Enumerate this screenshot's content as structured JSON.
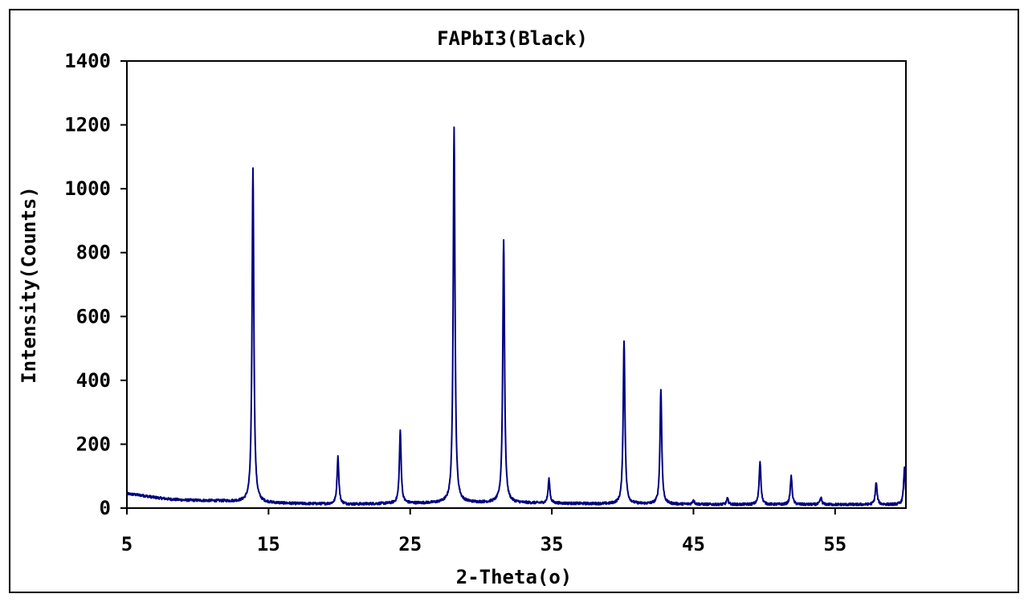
{
  "chart_data": {
    "type": "line",
    "title": "FAPbI3(Black)",
    "xlabel": "2-Theta(o)",
    "ylabel": "Intensity(Counts)",
    "xlim": [
      5,
      60
    ],
    "ylim": [
      0,
      1400
    ],
    "xticks": [
      5,
      15,
      25,
      35,
      45,
      55
    ],
    "yticks": [
      0,
      200,
      400,
      600,
      800,
      1000,
      1200,
      1400
    ],
    "grid": false,
    "line_color": "#000080",
    "baseline": [
      [
        5,
        45
      ],
      [
        6,
        40
      ],
      [
        7,
        33
      ],
      [
        8,
        28
      ],
      [
        9,
        25
      ],
      [
        10,
        24
      ],
      [
        11,
        23
      ],
      [
        12,
        22
      ],
      [
        13,
        20
      ],
      [
        14,
        18
      ],
      [
        15,
        16
      ],
      [
        17,
        14
      ],
      [
        19,
        13
      ],
      [
        21,
        12
      ],
      [
        23,
        14
      ],
      [
        25,
        15
      ],
      [
        27,
        16
      ],
      [
        29,
        17
      ],
      [
        31,
        17
      ],
      [
        33,
        16
      ],
      [
        35,
        15
      ],
      [
        37,
        14
      ],
      [
        39,
        13
      ],
      [
        41,
        13
      ],
      [
        43,
        12
      ],
      [
        45,
        12
      ],
      [
        47,
        11
      ],
      [
        49,
        11
      ],
      [
        51,
        11
      ],
      [
        53,
        11
      ],
      [
        55,
        11
      ],
      [
        57,
        11
      ],
      [
        60,
        11
      ]
    ],
    "peaks": [
      {
        "x": 13.9,
        "y": 1065
      },
      {
        "x": 19.9,
        "y": 160
      },
      {
        "x": 24.3,
        "y": 240
      },
      {
        "x": 28.1,
        "y": 1190
      },
      {
        "x": 31.6,
        "y": 840
      },
      {
        "x": 34.8,
        "y": 90
      },
      {
        "x": 40.1,
        "y": 525
      },
      {
        "x": 42.7,
        "y": 370
      },
      {
        "x": 45.0,
        "y": 25
      },
      {
        "x": 47.4,
        "y": 30
      },
      {
        "x": 49.7,
        "y": 145
      },
      {
        "x": 51.9,
        "y": 100
      },
      {
        "x": 54.0,
        "y": 32
      },
      {
        "x": 57.9,
        "y": 80
      },
      {
        "x": 59.9,
        "y": 125
      }
    ]
  }
}
